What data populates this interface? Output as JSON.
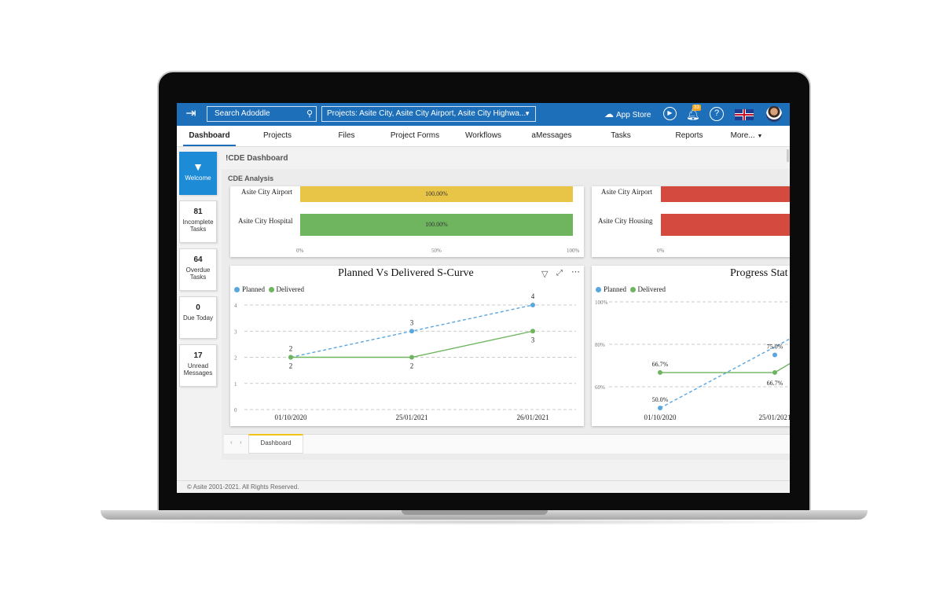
{
  "topbar": {
    "search_placeholder": "Search Adoddle",
    "projects_label": "Projects: Asite City, Asite City Airport, Asite City Highwa...",
    "app_store_label": "App Store",
    "notification_count": "33"
  },
  "nav": {
    "items": [
      "Dashboard",
      "Projects",
      "Files",
      "Project Forms",
      "Workflows",
      "aMessages",
      "Tasks",
      "Reports",
      "More..."
    ]
  },
  "sidebar": {
    "welcome_label": "Welcome",
    "tiles": [
      {
        "count": "81",
        "label_line1": "Incomplete",
        "label_line2": "Tasks"
      },
      {
        "count": "64",
        "label_line1": "Overdue",
        "label_line2": "Tasks"
      },
      {
        "count": "0",
        "label_line1": "Due Today",
        "label_line2": ""
      },
      {
        "count": "17",
        "label_line1": "Unread",
        "label_line2": "Messages"
      }
    ]
  },
  "dashboard": {
    "title": "!CDE Dashboard",
    "section_label": "CDE Analysis",
    "tab_label": "Dashboard",
    "footer": "© Asite 2001-2021. All Rights Reserved."
  },
  "colors": {
    "brand_blue": "#1d6fba",
    "bar_yellow": "#e8c547",
    "bar_green": "#6fb55f",
    "bar_red": "#d44a3f",
    "planned_blue": "#5aa7e0",
    "delivered_green": "#6fb55f"
  },
  "chart_data": [
    {
      "type": "bar",
      "categories": [
        "Asite City Airport",
        "Asite City Hospital"
      ],
      "values": [
        100,
        100
      ],
      "data_labels": [
        "100.00%",
        "100.00%"
      ],
      "tick_labels": [
        "0%",
        "50%",
        "100%"
      ],
      "xlim": [
        0,
        100
      ]
    },
    {
      "type": "bar",
      "categories": [
        "Asite City Airport",
        "Asite City Housing"
      ],
      "tick_labels": [
        "0%"
      ],
      "note_visible": "partially cut off on right"
    },
    {
      "type": "line",
      "title": "Planned Vs Delivered S-Curve",
      "categories": [
        "01/10/2020",
        "25/01/2021",
        "26/01/2021"
      ],
      "series": [
        {
          "name": "Planned",
          "values": [
            2,
            3,
            4
          ],
          "labels": [
            "2",
            "3",
            "4"
          ]
        },
        {
          "name": "Delivered",
          "values": [
            2,
            2,
            3
          ],
          "labels": [
            "2",
            "2",
            "3"
          ]
        }
      ],
      "y_ticks": [
        "0",
        "1",
        "2",
        "3",
        "4"
      ],
      "ylim": [
        0,
        4
      ],
      "legend": "top-left",
      "grid": true
    },
    {
      "type": "line",
      "title": "Progress Stat",
      "categories": [
        "01/10/2020",
        "25/01/2021"
      ],
      "series": [
        {
          "name": "Planned",
          "values": [
            50,
            75
          ],
          "labels": [
            "50.0%",
            "75.0%"
          ]
        },
        {
          "name": "Delivered",
          "values": [
            66.7,
            66.7
          ],
          "labels": [
            "66.7%",
            "66.7%"
          ]
        }
      ],
      "y_ticks": [
        "100%",
        "80%",
        "60%"
      ],
      "legend": "top-left",
      "grid": true
    }
  ]
}
